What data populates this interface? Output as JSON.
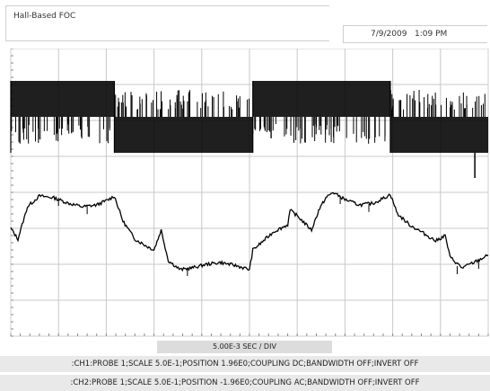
{
  "header": {
    "title": "Hall-Based FOC",
    "datetime": "7/9/2009   1:09 PM"
  },
  "footer": {
    "timebase": "5.00E-3 SEC / DIV",
    "ch1_info": ":CH1:PROBE 1;SCALE 5.0E-1;POSITION 1.96E0;COUPLING DC;BANDWIDTH OFF;INVERT OFF",
    "ch2_info": ":CH2:PROBE 1;SCALE 5.0E-1;POSITION -1.96E0;COUPLING AC;BANDWIDTH OFF;INVERT OFF"
  },
  "colors": {
    "trace": "#000000",
    "grid": "#c8c8c8",
    "frame": "#cfcfcf"
  },
  "chart_data": {
    "type": "line",
    "grid": true,
    "x_divisions": 10,
    "y_divisions": 8,
    "xlim": [
      0,
      10
    ],
    "ylim": [
      -4,
      4
    ],
    "series": [
      {
        "channel": "CH1",
        "style": "pwm_square",
        "levels": {
          "high_top": 3.1,
          "high_bottom": 2.1,
          "low_top": 2.1,
          "low_bottom": 1.1
        },
        "segments": [
          {
            "x0": 0.0,
            "x1": 2.17,
            "state": "high"
          },
          {
            "x0": 2.17,
            "x1": 5.07,
            "state": "low"
          },
          {
            "x0": 5.07,
            "x1": 7.95,
            "state": "high"
          },
          {
            "x0": 7.95,
            "x1": 10.0,
            "state": "low"
          }
        ]
      },
      {
        "channel": "CH2",
        "style": "analog",
        "points": [
          [
            0.0,
            -1.0
          ],
          [
            0.15,
            -1.3
          ],
          [
            0.35,
            -0.4
          ],
          [
            0.6,
            -0.1
          ],
          [
            0.9,
            -0.15
          ],
          [
            1.2,
            -0.3
          ],
          [
            1.5,
            -0.4
          ],
          [
            1.8,
            -0.35
          ],
          [
            2.05,
            -0.2
          ],
          [
            2.17,
            -0.1
          ],
          [
            2.35,
            -0.8
          ],
          [
            2.6,
            -1.3
          ],
          [
            2.85,
            -1.5
          ],
          [
            3.0,
            -1.6
          ],
          [
            3.15,
            -1.05
          ],
          [
            3.3,
            -1.9
          ],
          [
            3.55,
            -2.15
          ],
          [
            3.8,
            -2.1
          ],
          [
            4.1,
            -2.0
          ],
          [
            4.4,
            -1.95
          ],
          [
            4.75,
            -2.05
          ],
          [
            5.0,
            -2.15
          ],
          [
            5.07,
            -1.6
          ],
          [
            5.25,
            -1.4
          ],
          [
            5.5,
            -1.1
          ],
          [
            5.8,
            -0.9
          ],
          [
            5.85,
            -0.5
          ],
          [
            6.0,
            -0.65
          ],
          [
            6.3,
            -1.05
          ],
          [
            6.45,
            -0.5
          ],
          [
            6.6,
            -0.15
          ],
          [
            6.75,
            0.0
          ],
          [
            7.0,
            -0.2
          ],
          [
            7.3,
            -0.35
          ],
          [
            7.6,
            -0.3
          ],
          [
            7.9,
            -0.1
          ],
          [
            7.95,
            -0.05
          ],
          [
            8.1,
            -0.6
          ],
          [
            8.35,
            -0.9
          ],
          [
            8.6,
            -1.1
          ],
          [
            8.9,
            -1.35
          ],
          [
            9.1,
            -1.2
          ],
          [
            9.2,
            -1.8
          ],
          [
            9.45,
            -2.1
          ],
          [
            9.7,
            -1.95
          ],
          [
            10.0,
            -1.75
          ]
        ]
      }
    ]
  }
}
